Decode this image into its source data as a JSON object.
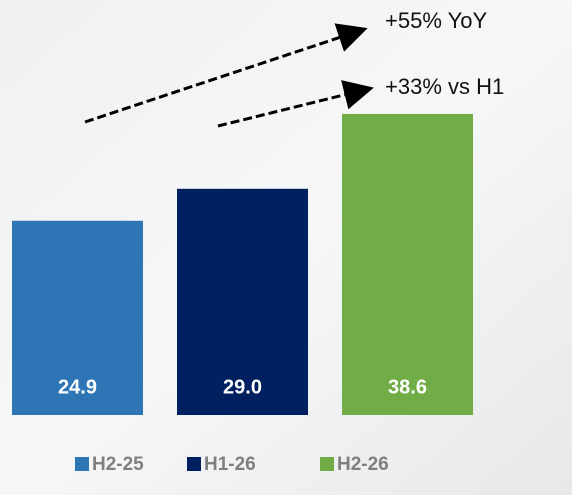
{
  "chart_data": {
    "type": "bar",
    "categories": [
      "H2-25",
      "H1-26",
      "H2-26"
    ],
    "values": [
      24.9,
      29,
      38.6
    ],
    "value_labels": [
      "24.9",
      "29.0",
      "38.6"
    ],
    "colors": [
      "#2e75b6",
      "#002060",
      "#70ad47"
    ],
    "annotations": [
      "+55% YoY",
      "+33% vs H1"
    ]
  }
}
